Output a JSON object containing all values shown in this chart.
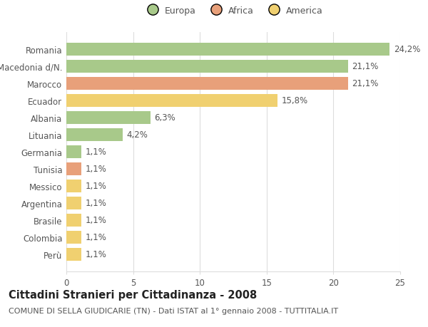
{
  "categories": [
    "Romania",
    "Macedonia d/N.",
    "Marocco",
    "Ecuador",
    "Albania",
    "Lituania",
    "Germania",
    "Tunisia",
    "Messico",
    "Argentina",
    "Brasile",
    "Colombia",
    "Perù"
  ],
  "values": [
    24.2,
    21.1,
    21.1,
    15.8,
    6.3,
    4.2,
    1.1,
    1.1,
    1.1,
    1.1,
    1.1,
    1.1,
    1.1
  ],
  "labels": [
    "24,2%",
    "21,1%",
    "21,1%",
    "15,8%",
    "6,3%",
    "4,2%",
    "1,1%",
    "1,1%",
    "1,1%",
    "1,1%",
    "1,1%",
    "1,1%",
    "1,1%"
  ],
  "continents": [
    "Europa",
    "Europa",
    "Africa",
    "America",
    "Europa",
    "Europa",
    "Europa",
    "Africa",
    "America",
    "America",
    "America",
    "America",
    "America"
  ],
  "colors": {
    "Europa": "#a8c98a",
    "Africa": "#e8a07a",
    "America": "#f0d070"
  },
  "title": "Cittadini Stranieri per Cittadinanza - 2008",
  "subtitle": "COMUNE DI SELLA GIUDICARIE (TN) - Dati ISTAT al 1° gennaio 2008 - TUTTITALIA.IT",
  "xlim": [
    0,
    25
  ],
  "xticks": [
    0,
    5,
    10,
    15,
    20,
    25
  ],
  "background_color": "#ffffff",
  "bar_height": 0.72,
  "label_fontsize": 8.5,
  "tick_fontsize": 8.5,
  "title_fontsize": 10.5,
  "subtitle_fontsize": 8.0,
  "grid_color": "#dddddd",
  "text_color": "#555555"
}
